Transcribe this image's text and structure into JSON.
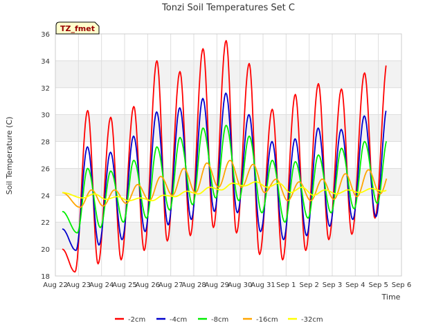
{
  "chart_data": {
    "type": "line",
    "title": "Tonzi Soil Temperatures Set C",
    "xlabel": "Time",
    "ylabel": "Soil Temperature (C)",
    "badge": "TZ_fmet",
    "ylim": [
      18,
      36
    ],
    "yticks": [
      18,
      20,
      22,
      24,
      26,
      28,
      30,
      32,
      34,
      36
    ],
    "xlim": [
      0,
      15
    ],
    "xtick_labels": [
      "Aug 22",
      "Aug 23",
      "Aug 24",
      "Aug 25",
      "Aug 26",
      "Aug 27",
      "Aug 28",
      "Aug 29",
      "Aug 30",
      "Aug 31",
      "Sep 1",
      "Sep 2",
      "Sep 3",
      "Sep 4",
      "Sep 5",
      "Sep 6"
    ],
    "grid": true,
    "legend_position": "bottom",
    "series": [
      {
        "name": "-2cm",
        "color": "#ff0000",
        "daily_min": [
          18.3,
          18.9,
          19.2,
          19.9,
          20.6,
          21.0,
          21.6,
          21.2,
          19.6,
          19.2,
          19.9,
          20.7,
          21.1,
          22.3,
          22.6
        ],
        "daily_max": [
          30.3,
          29.8,
          30.6,
          34.0,
          33.2,
          34.9,
          35.5,
          33.8,
          30.4,
          31.5,
          32.3,
          31.9,
          33.1,
          34.1,
          34.1
        ],
        "start_value": 20.0,
        "end_value": 22.6
      },
      {
        "name": "-4cm",
        "color": "#0000cc",
        "daily_min": [
          19.9,
          20.3,
          20.7,
          21.3,
          21.8,
          22.2,
          22.8,
          22.7,
          21.3,
          20.7,
          21.0,
          21.7,
          22.2,
          22.4,
          23.8
        ],
        "daily_max": [
          27.6,
          27.2,
          28.4,
          30.2,
          30.5,
          31.2,
          31.6,
          30.0,
          28.0,
          28.2,
          29.0,
          28.9,
          29.9,
          30.6,
          30.6
        ],
        "start_value": 21.5,
        "end_value": 23.8
      },
      {
        "name": "-8cm",
        "color": "#00ee00",
        "daily_min": [
          21.2,
          21.6,
          22.0,
          22.3,
          22.9,
          23.3,
          23.8,
          23.6,
          22.7,
          22.0,
          22.3,
          22.7,
          23.0,
          23.4,
          24.2
        ],
        "daily_max": [
          26.0,
          25.8,
          26.6,
          27.6,
          28.3,
          29.0,
          29.2,
          28.4,
          26.6,
          26.5,
          27.0,
          27.5,
          28.0,
          28.2,
          28.2
        ],
        "start_value": 22.8,
        "end_value": 24.4
      },
      {
        "name": "-16cm",
        "color": "#ffa500",
        "daily_min": [
          23.1,
          23.2,
          23.4,
          23.6,
          24.0,
          24.2,
          24.6,
          24.6,
          24.2,
          23.6,
          23.6,
          23.7,
          23.9,
          24.1,
          24.5
        ],
        "daily_max": [
          24.4,
          24.4,
          24.8,
          25.4,
          26.0,
          26.4,
          26.6,
          26.3,
          25.2,
          25.0,
          25.2,
          25.6,
          25.9,
          26.0,
          26.0
        ],
        "start_value": 24.2,
        "end_value": 24.9
      },
      {
        "name": "-32cm",
        "color": "#ffff00",
        "daily_min": [
          23.8,
          23.7,
          23.6,
          23.6,
          23.9,
          24.1,
          24.4,
          24.7,
          24.6,
          24.2,
          24.0,
          24.1,
          24.2,
          24.3,
          24.5
        ],
        "daily_max": [
          24.1,
          23.9,
          23.8,
          24.0,
          24.3,
          24.6,
          24.9,
          25.0,
          24.9,
          24.6,
          24.4,
          24.4,
          24.5,
          24.6,
          24.8
        ],
        "start_value": 24.2,
        "end_value": 24.8
      }
    ]
  }
}
